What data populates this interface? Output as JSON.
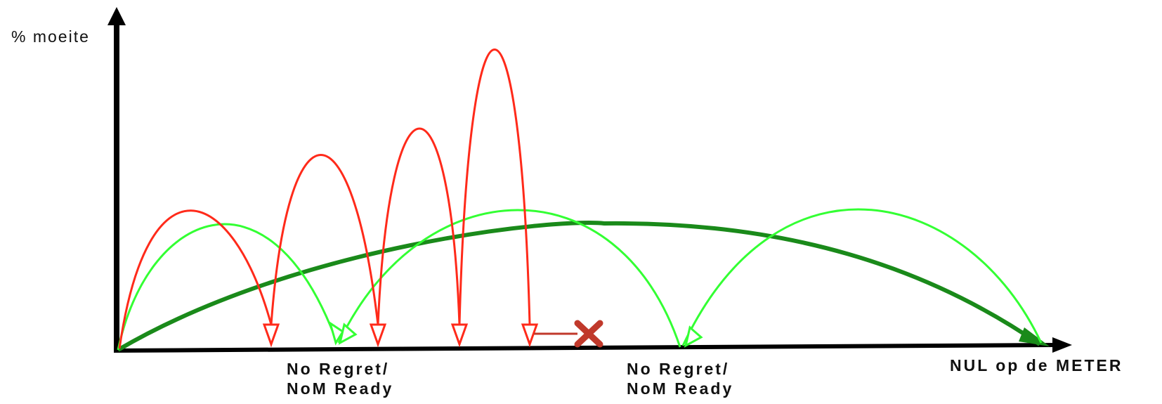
{
  "axes": {
    "y_label": "% moeite",
    "end_label": "NUL op de METER"
  },
  "milestones": [
    {
      "line1": "No Regret/",
      "line2": "NoM Ready"
    },
    {
      "line1": "No Regret/",
      "line2": "NoM Ready"
    }
  ],
  "colors": {
    "red_path": "#ff2a1a",
    "light_green_path": "#33ff33",
    "dark_green_path": "#1a8a1a",
    "stop_marker": "#c0392b",
    "axis": "#000000"
  },
  "icons": {
    "stop_marker": "cross-icon"
  }
}
